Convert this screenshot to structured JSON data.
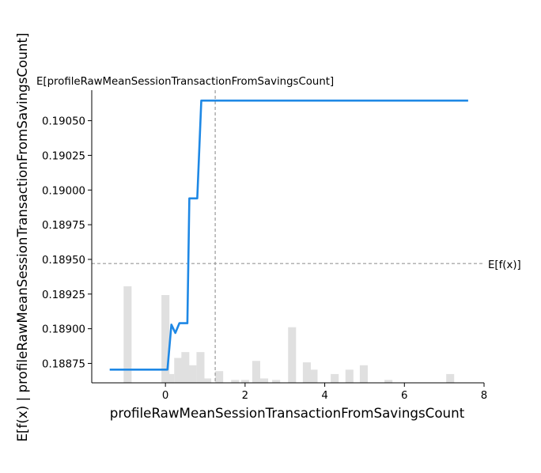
{
  "chart_data": {
    "type": "line",
    "xlabel": "profileRawMeanSessionTransactionFromSavingsCount",
    "ylabel": "E[f(x) | profileRawMeanSessionTransactionFromSavingsCount]",
    "top_label": "E[profileRawMeanSessionTransactionFromSavingsCount]",
    "right_label": "E[f(x)]",
    "xlim": [
      -1.85,
      8.0
    ],
    "ylim": [
      0.18861,
      0.19072
    ],
    "x_ticks": [
      0,
      2,
      4,
      6,
      8
    ],
    "y_ticks": [
      0.18875,
      0.189,
      0.18925,
      0.1895,
      0.18975,
      0.19,
      0.19025,
      0.1905
    ],
    "y_tick_labels": [
      "0.18875",
      "0.18900",
      "0.18925",
      "0.18950",
      "0.18975",
      "0.19000",
      "0.19025",
      "0.19050"
    ],
    "expected_x": 1.25,
    "expected_value": 0.18947,
    "line_color": "#1e88e5",
    "hist_color": "#e0e0e0",
    "series": [
      {
        "x": [
          -1.4,
          -0.5,
          0.0,
          0.05,
          0.15,
          0.25,
          0.35,
          0.45,
          0.55,
          0.6,
          0.75,
          0.8,
          0.9,
          1.5,
          3.0,
          5.0,
          7.6
        ],
        "y": [
          0.188705,
          0.188705,
          0.188705,
          0.188705,
          0.18903,
          0.18897,
          0.18904,
          0.18904,
          0.18904,
          0.18994,
          0.18994,
          0.18994,
          0.190645,
          0.190645,
          0.190645,
          0.190645,
          0.190645
        ]
      }
    ],
    "histogram": {
      "x": [
        -0.95,
        0.0,
        0.12,
        0.32,
        0.5,
        0.68,
        0.88,
        1.05,
        1.35,
        1.75,
        2.0,
        2.28,
        2.48,
        2.78,
        3.18,
        3.55,
        3.72,
        4.25,
        4.62,
        4.98,
        5.6,
        7.15
      ],
      "h": [
        0.33,
        0.3,
        0.03,
        0.085,
        0.105,
        0.06,
        0.105,
        0.015,
        0.04,
        0.01,
        0.01,
        0.075,
        0.015,
        0.01,
        0.19,
        0.07,
        0.045,
        0.03,
        0.045,
        0.06,
        0.01,
        0.03
      ],
      "bin_width": 0.2
    }
  }
}
